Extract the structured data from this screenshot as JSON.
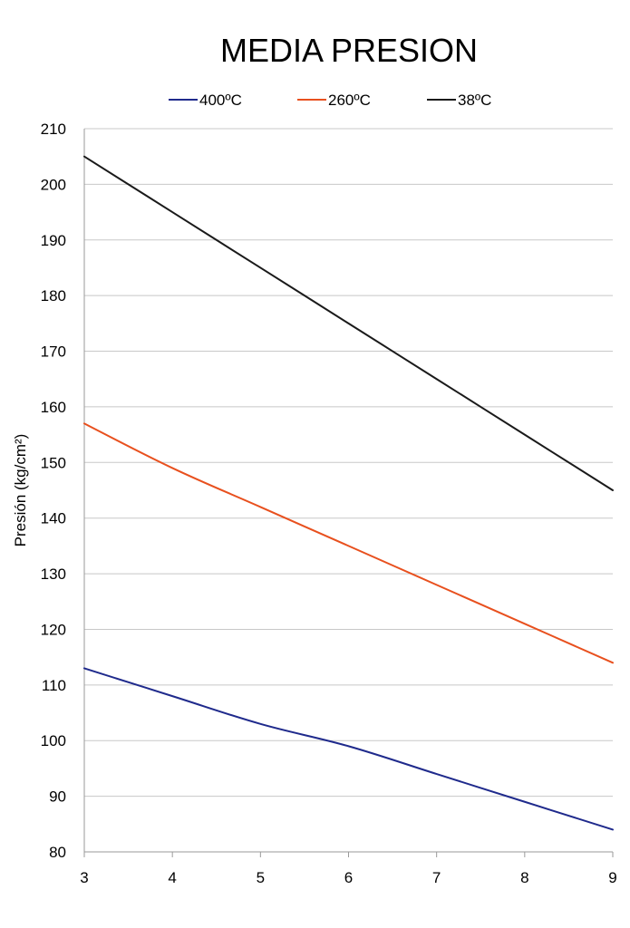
{
  "chart_data": {
    "type": "line",
    "title": "MEDIA PRESION",
    "xlabel": "",
    "ylabel": "Presión (kg/cm²)",
    "x": [
      3,
      4,
      5,
      6,
      7,
      8,
      9
    ],
    "xlim": [
      3,
      9
    ],
    "ylim": [
      80,
      210
    ],
    "yticks": [
      80,
      90,
      100,
      110,
      120,
      130,
      140,
      150,
      160,
      170,
      180,
      190,
      200,
      210
    ],
    "grid": true,
    "legend": "top",
    "series": [
      {
        "name": "400ºC",
        "color": "#1f2a8c",
        "values": [
          113,
          108,
          103,
          99,
          94,
          89,
          84
        ]
      },
      {
        "name": "260ºC",
        "color": "#e8501e",
        "values": [
          157,
          149,
          142,
          135,
          128,
          121,
          114
        ]
      },
      {
        "name": "38ºC",
        "color": "#1a1a1a",
        "values": [
          205,
          195,
          185,
          175,
          165,
          155,
          145
        ]
      }
    ]
  }
}
